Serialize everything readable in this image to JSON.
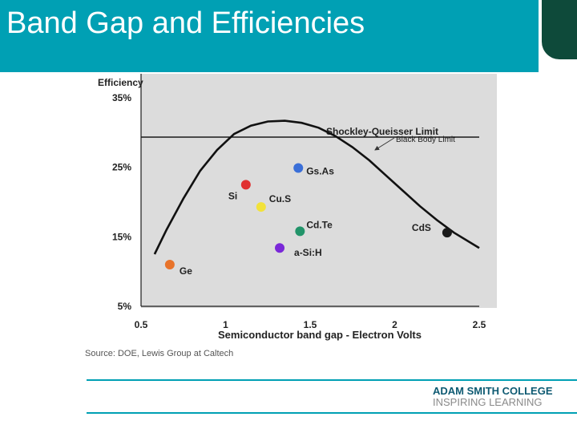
{
  "slide": {
    "title": "Band Gap and Efficiencies"
  },
  "colors": {
    "title_bar": "#00a0b4",
    "corner_tab": "#0e4a3a",
    "plot_bg": "#dcdcdc",
    "brand_primary": "#0e5a72",
    "brand_secondary": "#8a8a8a"
  },
  "branding": {
    "line1": "ADAM SMITH COLLEGE",
    "line2": "INSPIRING LEARNING"
  },
  "chart_data": {
    "type": "scatter",
    "title": "",
    "ylabel": "Efficiency",
    "xlabel": "Semiconductor band gap - Electron Volts",
    "xlim": [
      0.5,
      2.5
    ],
    "ylim": [
      5,
      35
    ],
    "x_ticks": [
      "0.5",
      "1",
      "1.5",
      "2",
      "2.5"
    ],
    "y_ticks": [
      "5%",
      "15%",
      "25%",
      "35%"
    ],
    "y_tick_values": [
      5,
      15,
      25,
      35
    ],
    "grid": false,
    "source": "Source: DOE,  Lewis Group at Caltech",
    "shockley_queisser": {
      "label": "Shockley-Queisser Limit",
      "value": 32
    },
    "black_body": {
      "label": "Black Body Limit",
      "x": [
        0.58,
        0.65,
        0.75,
        0.85,
        0.95,
        1.05,
        1.15,
        1.25,
        1.35,
        1.45,
        1.55,
        1.65,
        1.75,
        1.85,
        1.95,
        2.05,
        2.15,
        2.25,
        2.35,
        2.5
      ],
      "y": [
        12.5,
        16.0,
        20.5,
        24.5,
        27.5,
        29.8,
        31.0,
        31.6,
        31.7,
        31.4,
        30.7,
        29.5,
        27.9,
        26.0,
        23.8,
        21.6,
        19.4,
        17.4,
        15.6,
        13.4
      ]
    },
    "points": [
      {
        "label": "Ge",
        "x": 0.67,
        "y": 11.0,
        "color": "#e8732a"
      },
      {
        "label": "Si",
        "x": 1.12,
        "y": 22.5,
        "color": "#e03030"
      },
      {
        "label": "Cu.S",
        "x": 1.21,
        "y": 19.3,
        "color": "#f2e23a"
      },
      {
        "label": "Gs.As",
        "x": 1.43,
        "y": 24.9,
        "color": "#3a6fd8"
      },
      {
        "label": "Cd.Te",
        "x": 1.44,
        "y": 15.8,
        "color": "#22946a"
      },
      {
        "label": "a-Si:H",
        "x": 1.32,
        "y": 13.4,
        "color": "#7a28d8"
      },
      {
        "label": "CdS",
        "x": 2.31,
        "y": 15.6,
        "color": "#1a1a1a"
      }
    ]
  }
}
